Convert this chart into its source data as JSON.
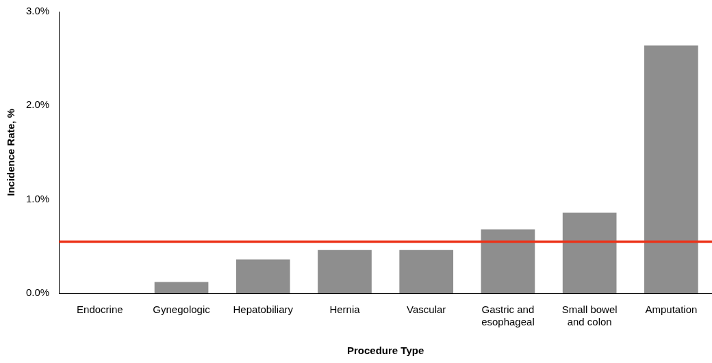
{
  "chart_data": {
    "type": "bar",
    "xlabel": "Procedure Type",
    "ylabel": "Incidence Rate, %",
    "categories": [
      "Endocrine",
      "Gynegologic",
      "Hepatobiliary",
      "Hernia",
      "Vascular",
      "Gastric and esophageal",
      "Small bowel and colon",
      "Amputation"
    ],
    "values": [
      0,
      0.12,
      0.36,
      0.46,
      0.46,
      0.68,
      0.86,
      2.64
    ],
    "color": "#8e8e8e",
    "ylim": [
      0,
      3
    ],
    "yticks": [
      {
        "value": 0,
        "label": "0.0%"
      },
      {
        "value": 1,
        "label": "1.0%"
      },
      {
        "value": 2,
        "label": "2.0%"
      },
      {
        "value": 3,
        "label": "3.0%"
      }
    ],
    "ref_lines": [
      {
        "axis": "y",
        "value": 0.55,
        "color": "#ec3218"
      }
    ],
    "grid": false,
    "legend": false
  }
}
